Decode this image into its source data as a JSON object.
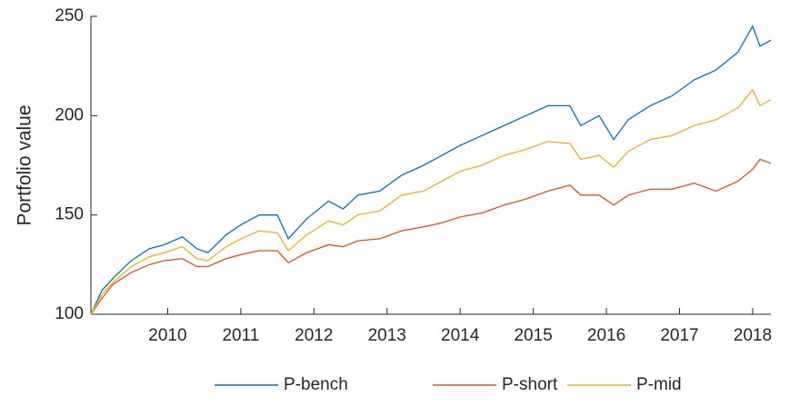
{
  "chart_data": {
    "type": "line",
    "y_label": "Portfolio value",
    "x": [
      2008.95,
      2009.1,
      2009.25,
      2009.5,
      2009.75,
      2009.95,
      2010.2,
      2010.4,
      2010.55,
      2010.8,
      2011,
      2011.25,
      2011.5,
      2011.65,
      2011.9,
      2012.2,
      2012.4,
      2012.6,
      2012.9,
      2013.2,
      2013.5,
      2013.75,
      2014,
      2014.3,
      2014.6,
      2014.9,
      2015.2,
      2015.5,
      2015.65,
      2015.9,
      2016.1,
      2016.3,
      2016.6,
      2016.9,
      2017.2,
      2017.5,
      2017.8,
      2018.0,
      2018.1,
      2018.25
    ],
    "series": [
      {
        "name": "P-bench",
        "color": "#0072BD",
        "values": [
          100,
          112,
          118,
          127,
          133,
          135,
          139,
          133,
          131,
          140,
          145,
          150,
          150,
          138,
          148,
          157,
          153,
          160,
          162,
          170,
          175,
          180,
          185,
          190,
          195,
          200,
          205,
          205,
          195,
          200,
          188,
          198,
          205,
          210,
          218,
          223,
          232,
          245,
          235,
          238
        ]
      },
      {
        "name": "P-short",
        "color": "#D95319",
        "values": [
          100,
          108,
          115,
          121,
          125,
          127,
          128,
          124,
          124,
          128,
          130,
          132,
          132,
          126,
          131,
          135,
          134,
          137,
          138,
          142,
          144,
          146,
          149,
          151,
          155,
          158,
          162,
          165,
          160,
          160,
          155,
          160,
          163,
          163,
          166,
          162,
          167,
          173,
          178,
          176
        ]
      },
      {
        "name": "P-mid",
        "color": "#EDB120",
        "values": [
          100,
          110,
          116,
          124,
          129,
          131,
          134,
          128,
          127,
          134,
          138,
          142,
          141,
          132,
          140,
          147,
          145,
          150,
          152,
          160,
          162,
          167,
          172,
          175,
          180,
          183,
          187,
          186,
          178,
          180,
          174,
          182,
          188,
          190,
          195,
          198,
          204,
          213,
          205,
          208
        ]
      }
    ],
    "xlim": [
      2008.95,
      2018.25
    ],
    "xticks": [
      2010,
      2011,
      2012,
      2013,
      2014,
      2015,
      2016,
      2017,
      2018
    ],
    "ylim": [
      100,
      250
    ],
    "yticks": [
      100,
      150,
      200,
      250
    ]
  }
}
